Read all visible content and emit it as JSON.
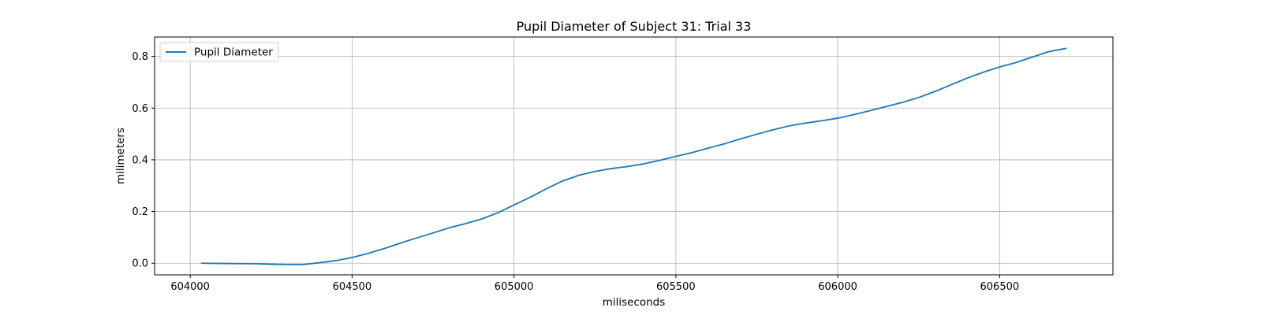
{
  "chart_data": {
    "type": "line",
    "title": "Pupil Diameter of Subject 31: Trial 33",
    "xlabel": "miliseconds",
    "ylabel": "milimeters",
    "xlim": [
      603890,
      606850
    ],
    "ylim": [
      -0.045,
      0.875
    ],
    "xticks": [
      604000,
      604500,
      605000,
      605500,
      606000,
      606500
    ],
    "xtick_labels": [
      "604000",
      "604500",
      "605000",
      "605500",
      "606000",
      "606500"
    ],
    "yticks": [
      0.0,
      0.2,
      0.4,
      0.6,
      0.8
    ],
    "ytick_labels": [
      "0.0",
      "0.2",
      "0.4",
      "0.6",
      "0.8"
    ],
    "grid": true,
    "legend": "upper-left",
    "series": [
      {
        "name": "Pupil Diameter",
        "color": "#1f77b4",
        "x": [
          604035,
          604100,
          604200,
          604250,
          604300,
          604350,
          604400,
          604450,
          604500,
          604550,
          604600,
          604650,
          604700,
          604750,
          604800,
          604850,
          604900,
          604950,
          605000,
          605050,
          605100,
          605150,
          605200,
          605250,
          605300,
          605350,
          605400,
          605450,
          605500,
          605550,
          605600,
          605650,
          605700,
          605750,
          605800,
          605850,
          605900,
          605950,
          606000,
          606050,
          606100,
          606150,
          606200,
          606250,
          606300,
          606350,
          606400,
          606450,
          606500,
          606550,
          606600,
          606650,
          606705
        ],
        "y": [
          0.0,
          -0.001,
          -0.002,
          -0.004,
          -0.005,
          -0.005,
          0.002,
          0.01,
          0.022,
          0.038,
          0.057,
          0.078,
          0.098,
          0.117,
          0.137,
          0.153,
          0.171,
          0.195,
          0.225,
          0.255,
          0.288,
          0.318,
          0.34,
          0.355,
          0.366,
          0.374,
          0.384,
          0.398,
          0.413,
          0.428,
          0.445,
          0.462,
          0.481,
          0.499,
          0.516,
          0.531,
          0.542,
          0.551,
          0.561,
          0.575,
          0.59,
          0.606,
          0.622,
          0.641,
          0.664,
          0.69,
          0.716,
          0.739,
          0.759,
          0.776,
          0.797,
          0.818,
          0.831
        ]
      }
    ]
  }
}
